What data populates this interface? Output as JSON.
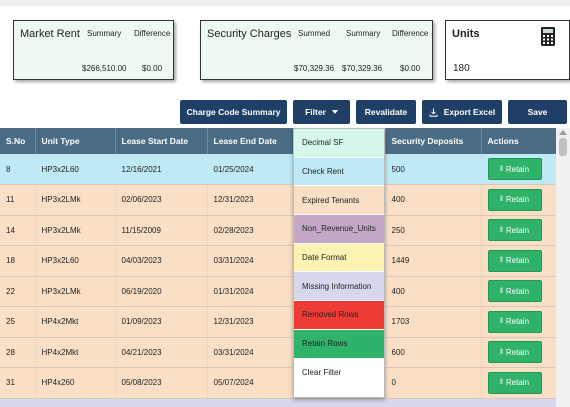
{
  "market_rent_card": {
    "title": "Market Rent",
    "col1": "Summary",
    "col2": "Difference",
    "val1": "$266,510.00",
    "val2": "$0.00"
  },
  "security_card": {
    "title": "Security Charges",
    "col1": "Summed",
    "col2": "Summary",
    "col3": "Difference",
    "val1": "$70,329.36",
    "val2": "$70,329.36",
    "val3": "$0.00"
  },
  "units_card": {
    "title": "Units",
    "value": "180",
    "icon": "calculator-icon"
  },
  "toolbar": {
    "charge_code_summary": "Charge Code Summary",
    "filter": "Filter",
    "revalidate": "Revalidate",
    "export_excel": "Export Excel",
    "save": "Save"
  },
  "table": {
    "headers": [
      "S.No",
      "Unit Type",
      "Lease Start Date",
      "Lease End Date",
      "",
      "Security Deposits",
      "Actions"
    ],
    "retain_label": "Retain",
    "rows": [
      {
        "sno": "8",
        "unit_type": "HP3x2L60",
        "start": "12/16/2021",
        "end": "01/25/2024",
        "deposit": "500"
      },
      {
        "sno": "11",
        "unit_type": "HP3x2LMk",
        "start": "02/06/2023",
        "end": "12/31/2023",
        "deposit": "400"
      },
      {
        "sno": "14",
        "unit_type": "HP3x2LMk",
        "start": "11/15/2009",
        "end": "02/28/2023",
        "deposit": "250"
      },
      {
        "sno": "18",
        "unit_type": "HP3x2L60",
        "start": "04/03/2023",
        "end": "03/31/2024",
        "deposit": "1449"
      },
      {
        "sno": "22",
        "unit_type": "HP3x2LMk",
        "start": "06/19/2020",
        "end": "01/31/2024",
        "deposit": "400"
      },
      {
        "sno": "25",
        "unit_type": "HP4x2Mkt",
        "start": "01/09/2023",
        "end": "12/31/2023",
        "deposit": "1703"
      },
      {
        "sno": "28",
        "unit_type": "HP4x2Mkt",
        "start": "04/21/2023",
        "end": "03/31/2024",
        "deposit": "600"
      },
      {
        "sno": "31",
        "unit_type": "HP4x260",
        "start": "05/08/2023",
        "end": "05/07/2024",
        "deposit": "0"
      }
    ]
  },
  "filter_menu": {
    "items": [
      {
        "label": "Decimal SF",
        "color": "#d6f8ec"
      },
      {
        "label": "Check Rent",
        "color": "#bfe9f4"
      },
      {
        "label": "Expired Tenants",
        "color": "#f8dfc6"
      },
      {
        "label": "Non_Revenue_Units",
        "color": "#c5a8c8"
      },
      {
        "label": "Date Format",
        "color": "#fbf3b3"
      },
      {
        "label": "Missing Information",
        "color": "#d7d7ee"
      },
      {
        "label": "Removed Rows",
        "color": "#ef3b35"
      },
      {
        "label": "Retain Rows",
        "color": "#2fb36a"
      },
      {
        "label": "Clear Filter",
        "color": "#ffffff"
      }
    ]
  },
  "colors": {
    "header": "#4a6c84",
    "button": "#1f3f66",
    "retain": "#2fb36a",
    "selected_row": "#bfe9f4",
    "row": "#f8dfc6"
  }
}
